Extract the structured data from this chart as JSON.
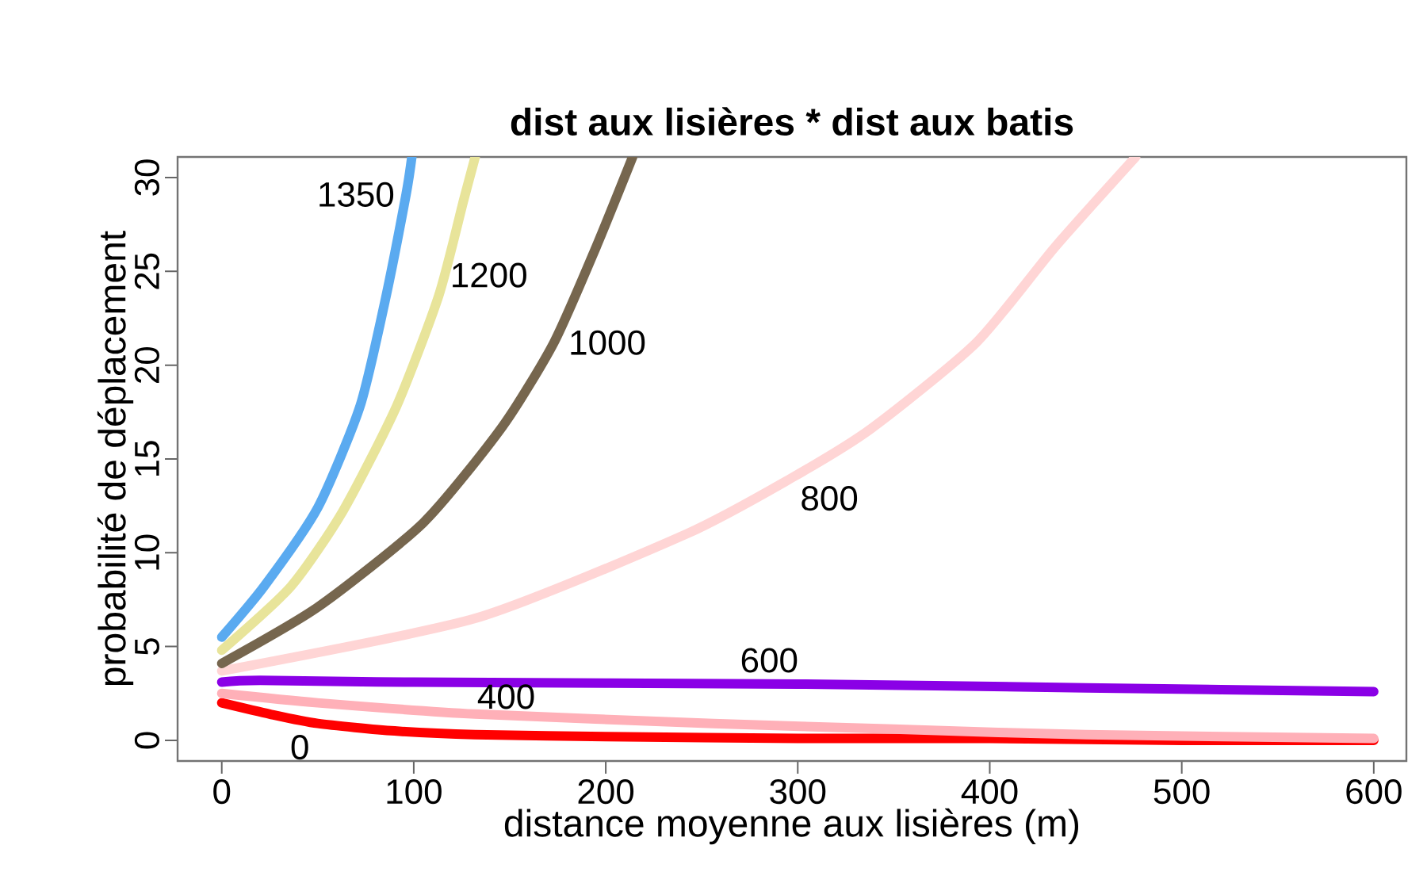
{
  "chart_data": {
    "type": "line",
    "title": "dist aux lisières * dist aux batis",
    "xlabel": "distance moyenne aux lisières (m)",
    "ylabel": "probabilité de déplacement",
    "xlim": [
      -23,
      617
    ],
    "ylim": [
      -1.1,
      31.1
    ],
    "xticks": [
      0,
      100,
      200,
      300,
      400,
      500,
      600
    ],
    "yticks": [
      0,
      5,
      10,
      15,
      20,
      25,
      30
    ],
    "grid": false,
    "marker": "none",
    "line_style": "solid",
    "series": [
      {
        "name": "0",
        "color": "#ff0000",
        "x": [
          0,
          25,
          50,
          90,
          132,
          200,
          300,
          400,
          500,
          600
        ],
        "values": [
          2.0,
          1.4,
          0.9,
          0.5,
          0.3,
          0.2,
          0.1,
          0.1,
          0.0,
          0.0
        ]
      },
      {
        "name": "400",
        "color": "#ffb0b8",
        "x": [
          0,
          50,
          132,
          256,
          350,
          450,
          600
        ],
        "values": [
          2.5,
          2.0,
          1.4,
          0.9,
          0.6,
          0.3,
          0.1
        ]
      },
      {
        "name": "600",
        "color": "#8a00e6",
        "x": [
          0,
          20,
          100,
          300,
          450,
          600
        ],
        "values": [
          3.1,
          3.2,
          3.1,
          3.0,
          2.8,
          2.6
        ]
      },
      {
        "name": "800",
        "color": "#ffd5d5",
        "x": [
          0,
          132,
          242,
          297,
          338,
          393,
          434,
          476
        ],
        "values": [
          3.7,
          6.5,
          11.0,
          14.0,
          16.6,
          21.2,
          26.3,
          31.1
        ]
      },
      {
        "name": "1000",
        "color": "#76664e",
        "x": [
          0,
          50,
          105,
          146,
          173,
          195,
          214
        ],
        "values": [
          4.1,
          7.1,
          11.6,
          16.7,
          21.2,
          26.3,
          31.1
        ]
      },
      {
        "name": "1200",
        "color": "#e8e49a",
        "x": [
          0,
          36,
          63,
          91,
          113,
          126,
          132
        ],
        "values": [
          4.8,
          8.2,
          12.2,
          17.8,
          23.7,
          28.8,
          31.1
        ]
      },
      {
        "name": "1350",
        "color": "#5aaaf0",
        "x": [
          0,
          22,
          50,
          72,
          85,
          96,
          99
        ],
        "values": [
          5.5,
          8.2,
          12.4,
          17.8,
          23.4,
          29.1,
          31.1
        ]
      }
    ]
  }
}
